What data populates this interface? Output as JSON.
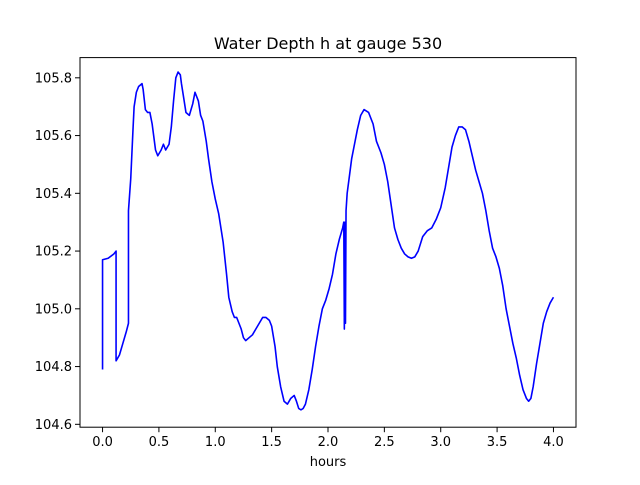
{
  "chart_data": {
    "type": "line",
    "title": "Water Depth h at gauge 530",
    "xlabel": "hours",
    "ylabel": "",
    "xlim": [
      -0.2,
      4.2
    ],
    "ylim": [
      104.59,
      105.87
    ],
    "xticks": [
      0.0,
      0.5,
      1.0,
      1.5,
      2.0,
      2.5,
      3.0,
      3.5,
      4.0
    ],
    "xtick_labels": [
      "0.0",
      "0.5",
      "1.0",
      "1.5",
      "2.0",
      "2.5",
      "3.0",
      "3.5",
      "4.0"
    ],
    "yticks": [
      104.6,
      104.8,
      105.0,
      105.2,
      105.4,
      105.6,
      105.8
    ],
    "ytick_labels": [
      "104.6",
      "104.8",
      "105.0",
      "105.2",
      "105.4",
      "105.6",
      "105.8"
    ],
    "grid": false,
    "series": [
      {
        "color": "#0000ff",
        "x": [
          0.0,
          0.0,
          0.05,
          0.1,
          0.12,
          0.12,
          0.15,
          0.18,
          0.21,
          0.23,
          0.23,
          0.25,
          0.27,
          0.28,
          0.3,
          0.32,
          0.35,
          0.36,
          0.38,
          0.4,
          0.42,
          0.44,
          0.47,
          0.49,
          0.52,
          0.54,
          0.56,
          0.59,
          0.61,
          0.63,
          0.65,
          0.67,
          0.69,
          0.7,
          0.72,
          0.74,
          0.77,
          0.8,
          0.82,
          0.85,
          0.87,
          0.89,
          0.92,
          0.94,
          0.97,
          1.0,
          1.03,
          1.07,
          1.1,
          1.12,
          1.15,
          1.17,
          1.19,
          1.21,
          1.23,
          1.25,
          1.27,
          1.3,
          1.33,
          1.36,
          1.39,
          1.42,
          1.45,
          1.48,
          1.5,
          1.53,
          1.55,
          1.58,
          1.61,
          1.64,
          1.67,
          1.7,
          1.72,
          1.74,
          1.76,
          1.78,
          1.8,
          1.83,
          1.86,
          1.89,
          1.92,
          1.95,
          1.98,
          2.01,
          2.04,
          2.07,
          2.1,
          2.13,
          2.14,
          2.145,
          2.15,
          2.155,
          2.16,
          2.17,
          2.19,
          2.21,
          2.23,
          2.26,
          2.29,
          2.32,
          2.36,
          2.4,
          2.43,
          2.47,
          2.5,
          2.53,
          2.56,
          2.59,
          2.62,
          2.65,
          2.68,
          2.71,
          2.74,
          2.77,
          2.8,
          2.84,
          2.88,
          2.92,
          2.96,
          3.0,
          3.04,
          3.07,
          3.1,
          3.13,
          3.16,
          3.19,
          3.22,
          3.25,
          3.28,
          3.31,
          3.34,
          3.37,
          3.4,
          3.43,
          3.46,
          3.49,
          3.52,
          3.55,
          3.58,
          3.61,
          3.64,
          3.67,
          3.7,
          3.73,
          3.76,
          3.78,
          3.8,
          3.82,
          3.85,
          3.88,
          3.91,
          3.94,
          3.97,
          4.0
        ],
        "y": [
          104.79,
          105.17,
          105.175,
          105.19,
          105.2,
          104.82,
          104.84,
          104.88,
          104.92,
          104.95,
          105.34,
          105.45,
          105.62,
          105.7,
          105.75,
          105.77,
          105.78,
          105.76,
          105.69,
          105.68,
          105.68,
          105.64,
          105.55,
          105.53,
          105.55,
          105.57,
          105.55,
          105.57,
          105.63,
          105.72,
          105.8,
          105.82,
          105.81,
          105.78,
          105.73,
          105.68,
          105.67,
          105.71,
          105.75,
          105.72,
          105.67,
          105.65,
          105.58,
          105.52,
          105.44,
          105.38,
          105.33,
          105.23,
          105.12,
          105.04,
          104.99,
          104.97,
          104.97,
          104.95,
          104.93,
          104.9,
          104.89,
          104.9,
          104.91,
          104.93,
          104.95,
          104.97,
          104.97,
          104.96,
          104.94,
          104.87,
          104.8,
          104.73,
          104.68,
          104.67,
          104.69,
          104.7,
          104.68,
          104.655,
          104.65,
          104.655,
          104.67,
          104.72,
          104.79,
          104.87,
          104.94,
          105.0,
          105.03,
          105.07,
          105.12,
          105.19,
          105.24,
          105.28,
          105.3,
          104.93,
          105.3,
          104.95,
          105.34,
          105.4,
          105.46,
          105.52,
          105.56,
          105.62,
          105.67,
          105.69,
          105.68,
          105.64,
          105.58,
          105.54,
          105.5,
          105.44,
          105.36,
          105.28,
          105.24,
          105.21,
          105.19,
          105.18,
          105.175,
          105.18,
          105.2,
          105.25,
          105.27,
          105.28,
          105.31,
          105.35,
          105.42,
          105.49,
          105.56,
          105.6,
          105.63,
          105.63,
          105.62,
          105.58,
          105.53,
          105.48,
          105.44,
          105.4,
          105.34,
          105.27,
          105.21,
          105.18,
          105.14,
          105.08,
          105.0,
          104.94,
          104.88,
          104.83,
          104.77,
          104.72,
          104.69,
          104.68,
          104.69,
          104.73,
          104.81,
          104.88,
          104.95,
          104.99,
          105.02,
          105.04
        ]
      }
    ]
  }
}
